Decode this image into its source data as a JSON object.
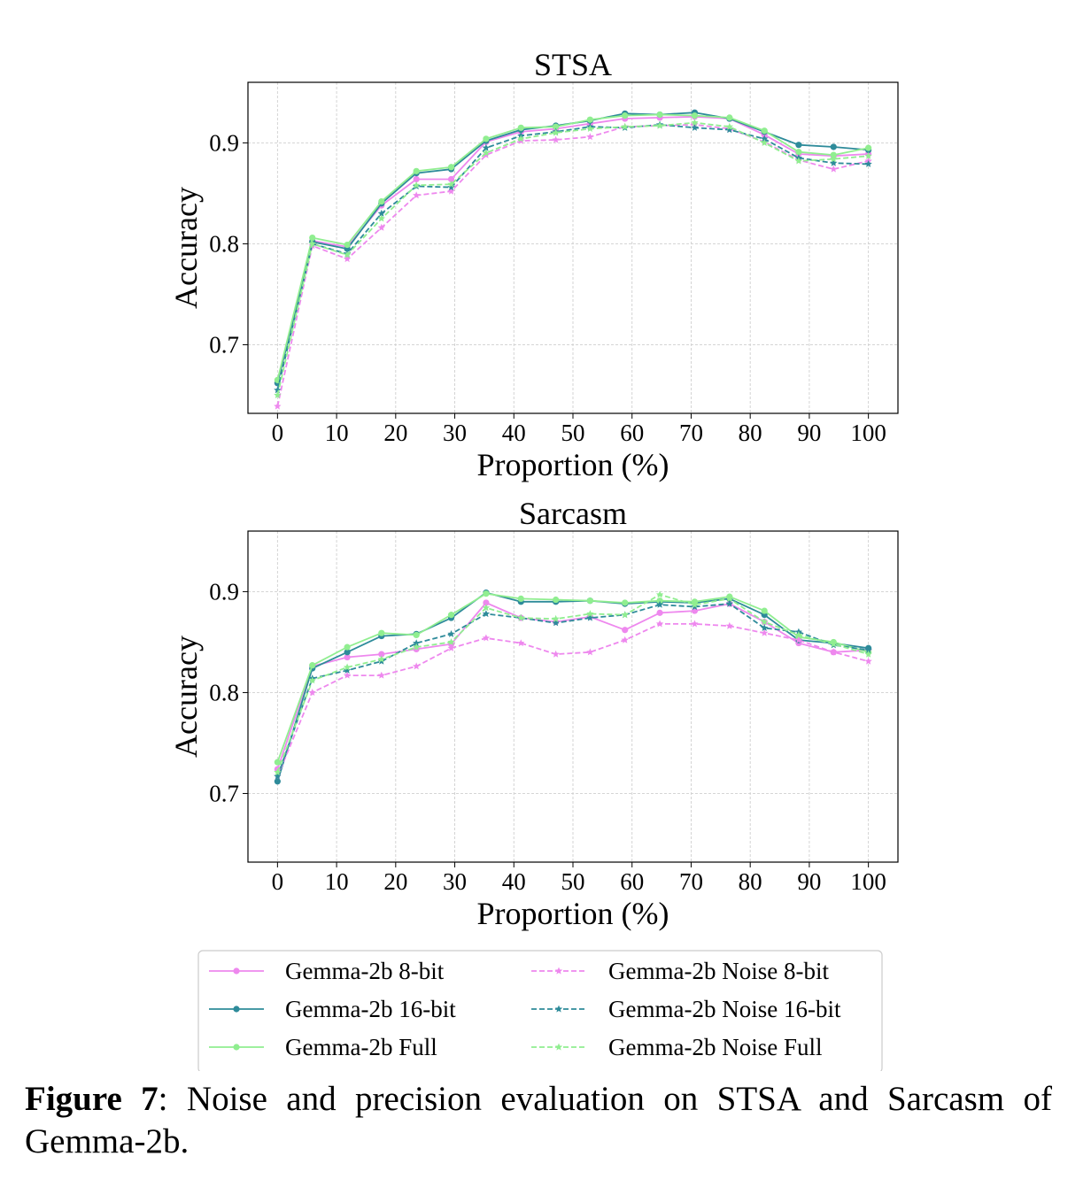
{
  "series_styles": [
    {
      "name": "Gemma-2b 8-bit",
      "color": "#ee88ee",
      "dash": false,
      "marker": "circle"
    },
    {
      "name": "Gemma-2b 16-bit",
      "color": "#2e8b9a",
      "dash": false,
      "marker": "circle"
    },
    {
      "name": "Gemma-2b Full",
      "color": "#90ee90",
      "dash": false,
      "marker": "circle"
    },
    {
      "name": "Gemma-2b Noise 8-bit",
      "color": "#ee88ee",
      "dash": true,
      "marker": "star"
    },
    {
      "name": "Gemma-2b Noise 16-bit",
      "color": "#2e8b9a",
      "dash": true,
      "marker": "star"
    },
    {
      "name": "Gemma-2b Noise Full",
      "color": "#90ee90",
      "dash": true,
      "marker": "star"
    }
  ],
  "chart_data": [
    {
      "type": "line",
      "title": "STSA",
      "xlabel": "Proportion (%)",
      "ylabel": "Accuracy",
      "xlim": [
        -5,
        105
      ],
      "ylim": [
        0.632,
        0.96
      ],
      "xticks": [
        0,
        10,
        20,
        30,
        40,
        50,
        60,
        70,
        80,
        90,
        100
      ],
      "yticks": [
        0.7,
        0.8,
        0.9
      ],
      "ytick_labels": [
        "0.7",
        "0.8",
        "0.9"
      ],
      "grid": true,
      "x": [
        0,
        5.9,
        11.8,
        17.6,
        23.5,
        29.4,
        35.3,
        41.2,
        47.1,
        52.9,
        58.8,
        64.7,
        70.6,
        76.5,
        82.4,
        88.2,
        94.1,
        100
      ],
      "series": [
        {
          "name": "Gemma-2b 8-bit",
          "values": [
            0.662,
            0.803,
            0.797,
            0.838,
            0.864,
            0.864,
            0.901,
            0.911,
            0.914,
            0.919,
            0.924,
            0.925,
            0.926,
            0.924,
            0.908,
            0.889,
            0.887,
            0.889
          ]
        },
        {
          "name": "Gemma-2b 16-bit",
          "values": [
            0.662,
            0.802,
            0.795,
            0.84,
            0.87,
            0.874,
            0.902,
            0.913,
            0.917,
            0.922,
            0.929,
            0.928,
            0.93,
            0.924,
            0.911,
            0.898,
            0.896,
            0.893
          ]
        },
        {
          "name": "Gemma-2b Full",
          "values": [
            0.665,
            0.806,
            0.799,
            0.842,
            0.872,
            0.876,
            0.904,
            0.915,
            0.916,
            0.923,
            0.927,
            0.928,
            0.927,
            0.925,
            0.912,
            0.891,
            0.888,
            0.895
          ]
        },
        {
          "name": "Gemma-2b Noise 8-bit",
          "values": [
            0.639,
            0.798,
            0.785,
            0.816,
            0.848,
            0.852,
            0.888,
            0.902,
            0.903,
            0.906,
            0.916,
            0.917,
            0.918,
            0.914,
            0.901,
            0.883,
            0.874,
            0.882
          ]
        },
        {
          "name": "Gemma-2b Noise 16-bit",
          "values": [
            0.655,
            0.8,
            0.79,
            0.83,
            0.857,
            0.856,
            0.895,
            0.907,
            0.911,
            0.916,
            0.915,
            0.918,
            0.915,
            0.913,
            0.904,
            0.885,
            0.88,
            0.879
          ]
        },
        {
          "name": "Gemma-2b Noise Full",
          "values": [
            0.65,
            0.8,
            0.789,
            0.825,
            0.858,
            0.859,
            0.89,
            0.904,
            0.91,
            0.914,
            0.916,
            0.917,
            0.92,
            0.916,
            0.9,
            0.882,
            0.884,
            0.887
          ]
        }
      ]
    },
    {
      "type": "line",
      "title": "Sarcasm",
      "xlabel": "Proportion (%)",
      "ylabel": "Accuracy",
      "xlim": [
        -5,
        105
      ],
      "ylim": [
        0.632,
        0.96
      ],
      "xticks": [
        0,
        10,
        20,
        30,
        40,
        50,
        60,
        70,
        80,
        90,
        100
      ],
      "yticks": [
        0.7,
        0.8,
        0.9
      ],
      "ytick_labels": [
        "0.7",
        "0.8",
        "0.9"
      ],
      "grid": true,
      "x": [
        0,
        5.9,
        11.8,
        17.6,
        23.5,
        29.4,
        35.3,
        41.2,
        47.1,
        52.9,
        58.8,
        64.7,
        70.6,
        76.5,
        82.4,
        88.2,
        94.1,
        100
      ],
      "series": [
        {
          "name": "Gemma-2b 8-bit",
          "values": [
            0.724,
            0.826,
            0.835,
            0.838,
            0.843,
            0.848,
            0.889,
            0.874,
            0.87,
            0.875,
            0.862,
            0.879,
            0.881,
            0.888,
            0.87,
            0.849,
            0.84,
            0.842
          ]
        },
        {
          "name": "Gemma-2b 16-bit",
          "values": [
            0.712,
            0.824,
            0.84,
            0.856,
            0.858,
            0.874,
            0.899,
            0.89,
            0.89,
            0.891,
            0.888,
            0.89,
            0.889,
            0.893,
            0.877,
            0.852,
            0.849,
            0.844
          ]
        },
        {
          "name": "Gemma-2b Full",
          "values": [
            0.731,
            0.827,
            0.845,
            0.859,
            0.857,
            0.877,
            0.898,
            0.893,
            0.892,
            0.891,
            0.889,
            0.891,
            0.89,
            0.895,
            0.881,
            0.855,
            0.85,
            0.84
          ]
        },
        {
          "name": "Gemma-2b Noise 8-bit",
          "values": [
            0.717,
            0.8,
            0.817,
            0.817,
            0.826,
            0.844,
            0.854,
            0.849,
            0.838,
            0.84,
            0.852,
            0.868,
            0.868,
            0.866,
            0.859,
            0.852,
            0.84,
            0.831
          ]
        },
        {
          "name": "Gemma-2b Noise 16-bit",
          "values": [
            0.717,
            0.814,
            0.822,
            0.831,
            0.849,
            0.858,
            0.878,
            0.874,
            0.869,
            0.874,
            0.877,
            0.887,
            0.885,
            0.888,
            0.864,
            0.86,
            0.847,
            0.842
          ]
        },
        {
          "name": "Gemma-2b Noise Full",
          "values": [
            0.721,
            0.812,
            0.825,
            0.833,
            0.845,
            0.85,
            0.884,
            0.874,
            0.873,
            0.878,
            0.877,
            0.897,
            0.887,
            0.893,
            0.87,
            0.857,
            0.848,
            0.838
          ]
        }
      ]
    }
  ],
  "caption": {
    "label": "Figure 7",
    "text": ": Noise and precision evaluation on STSA and Sarcasm of Gemma-2b."
  }
}
